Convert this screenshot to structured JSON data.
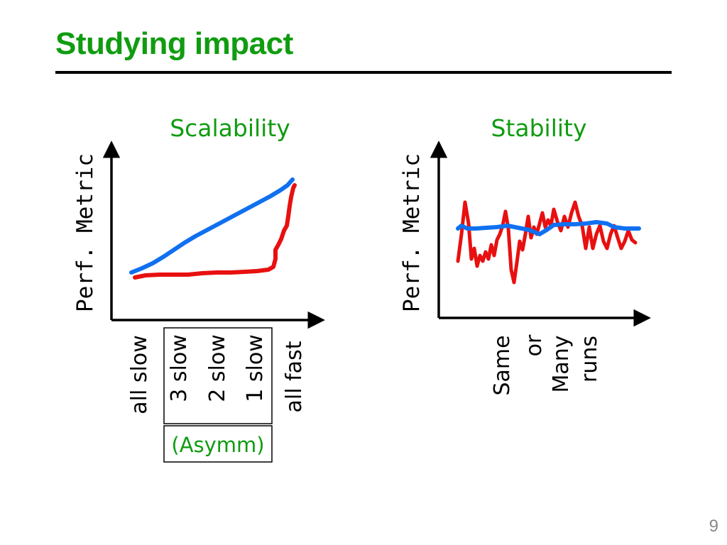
{
  "slide": {
    "title": "Studying impact",
    "page_number": "9"
  },
  "colors": {
    "title": "#109C10",
    "series_red": "#E81010",
    "series_blue": "#1070F0",
    "axis": "#000000"
  },
  "scalability": {
    "title": "Scalability",
    "ylabel": "Perf. Metric",
    "categories": [
      "all slow",
      "3 slow",
      "2 slow",
      "1 slow",
      "all fast"
    ],
    "group_label": "(Asymm)",
    "series": [
      {
        "color": "blue",
        "values": [
          0.0,
          0.2,
          0.4,
          0.7,
          1.0
        ]
      },
      {
        "color": "red",
        "values": [
          0.0,
          0.02,
          0.05,
          0.12,
          0.95
        ]
      }
    ]
  },
  "stability": {
    "title": "Stability",
    "ylabel": "Perf. Metric",
    "xlabel_lines": [
      "Same",
      "or",
      "Many",
      "runs"
    ]
  }
}
